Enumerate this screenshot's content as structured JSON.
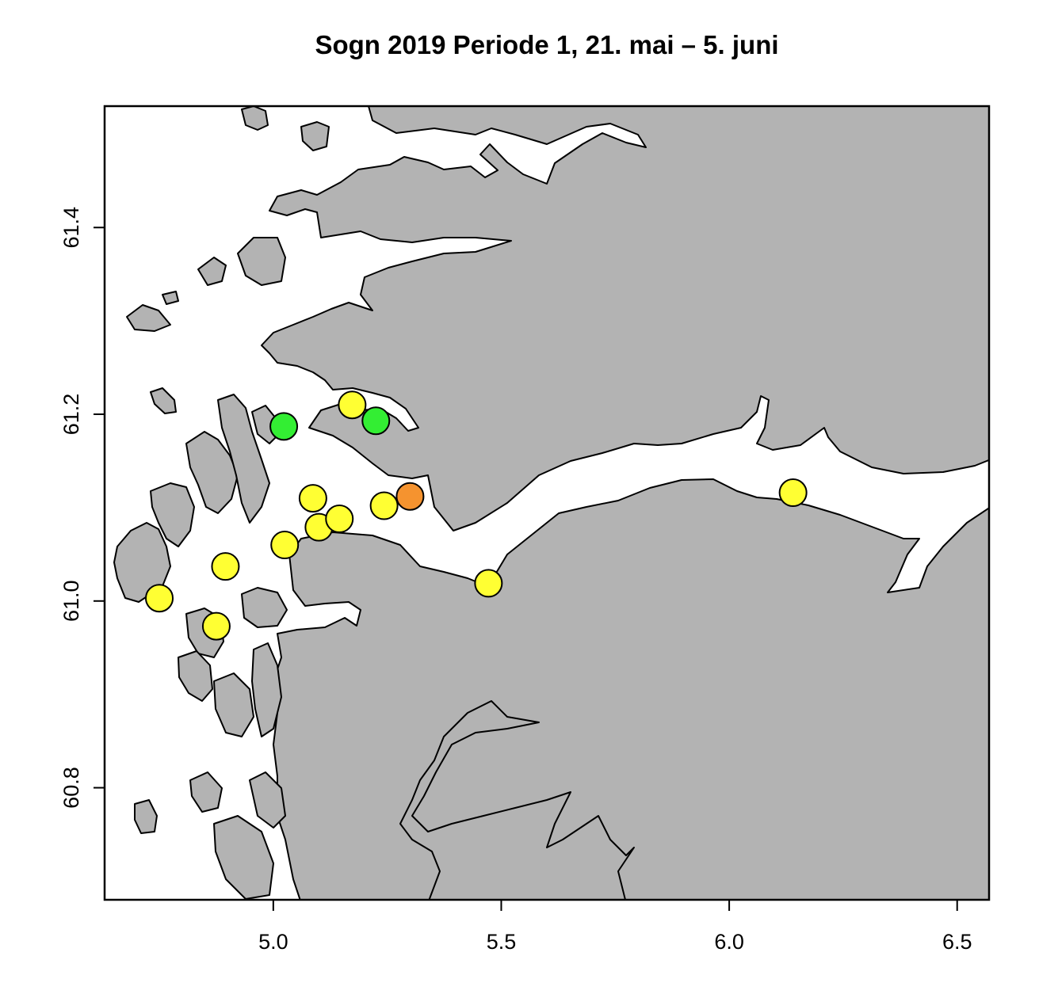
{
  "title": "Sogn 2019 Periode 1, 21. mai – 5. juni",
  "colors": {
    "land": "#b3b3b3",
    "sea": "#ffffff",
    "yellow": "#ffff33",
    "green": "#33ee33",
    "orange": "#f5932f"
  },
  "chart_data": {
    "type": "scatter",
    "xlim": [
      4.63,
      6.57
    ],
    "ylim": [
      60.68,
      61.53
    ],
    "x_ticks": [
      "5.0",
      "5.5",
      "6.0",
      "6.5"
    ],
    "y_ticks": [
      "60.8",
      "61.0",
      "61.2",
      "61.4"
    ],
    "points": [
      {
        "lon": 4.75,
        "lat": 61.003,
        "color": "yellow"
      },
      {
        "lon": 4.875,
        "lat": 60.973,
        "color": "yellow"
      },
      {
        "lon": 4.895,
        "lat": 61.037,
        "color": "yellow"
      },
      {
        "lon": 5.025,
        "lat": 61.06,
        "color": "yellow"
      },
      {
        "lon": 5.087,
        "lat": 61.11,
        "color": "yellow"
      },
      {
        "lon": 5.1,
        "lat": 61.079,
        "color": "yellow"
      },
      {
        "lon": 5.145,
        "lat": 61.088,
        "color": "yellow"
      },
      {
        "lon": 5.243,
        "lat": 61.102,
        "color": "yellow"
      },
      {
        "lon": 5.173,
        "lat": 61.21,
        "color": "yellow"
      },
      {
        "lon": 5.472,
        "lat": 61.019,
        "color": "yellow"
      },
      {
        "lon": 6.14,
        "lat": 61.116,
        "color": "yellow"
      },
      {
        "lon": 5.023,
        "lat": 61.187,
        "color": "green"
      },
      {
        "lon": 5.225,
        "lat": 61.193,
        "color": "green"
      },
      {
        "lon": 5.3,
        "lat": 61.112,
        "color": "orange"
      }
    ]
  }
}
